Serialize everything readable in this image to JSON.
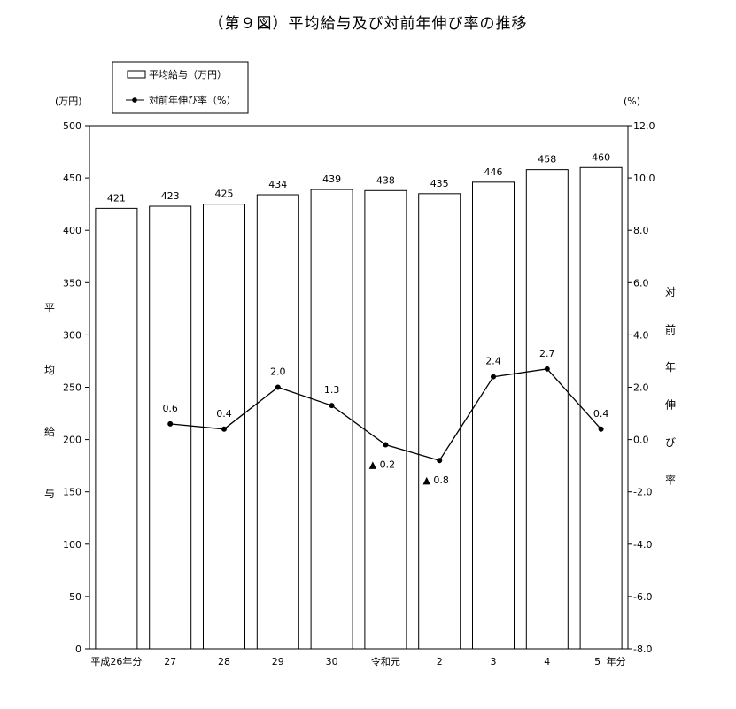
{
  "title": "（第９図）平均給与及び対前年伸び率の推移",
  "chart_data": {
    "type": "bar+line",
    "categories": [
      "平成26年分",
      "27",
      "28",
      "29",
      "30",
      "令和元",
      "2",
      "3",
      "4",
      "5"
    ],
    "x_suffix": "年分",
    "bar_series": {
      "name": "平均給与（万円）",
      "values": [
        421,
        423,
        425,
        434,
        439,
        438,
        435,
        446,
        458,
        460
      ]
    },
    "line_series": {
      "name": "対前年伸び率（%）",
      "values": [
        null,
        0.6,
        0.4,
        2.0,
        1.3,
        -0.2,
        -0.8,
        2.4,
        2.7,
        0.4
      ],
      "labels": [
        "",
        "0.6",
        "0.4",
        "2.0",
        "1.3",
        "▲ 0.2",
        "▲ 0.8",
        "2.4",
        "2.7",
        "0.4"
      ]
    },
    "y_left": {
      "unit": "(万円)",
      "label": [
        "平",
        "均",
        "給",
        "与"
      ],
      "min": 0,
      "max": 500,
      "step": 50,
      "ticks": [
        "0",
        "50",
        "100",
        "150",
        "200",
        "250",
        "300",
        "350",
        "400",
        "450",
        "500"
      ]
    },
    "y_right": {
      "unit": "(%)",
      "label": [
        "対",
        "前",
        "年",
        "伸",
        "び",
        "率"
      ],
      "min": -8.0,
      "max": 12.0,
      "step": 2.0,
      "ticks": [
        "-8.0",
        "-6.0",
        "-4.0",
        "-2.0",
        "0.0",
        "2.0",
        "4.0",
        "6.0",
        "8.0",
        "10.0",
        "12.0"
      ]
    },
    "grid": false,
    "legend_position": "top-left"
  }
}
